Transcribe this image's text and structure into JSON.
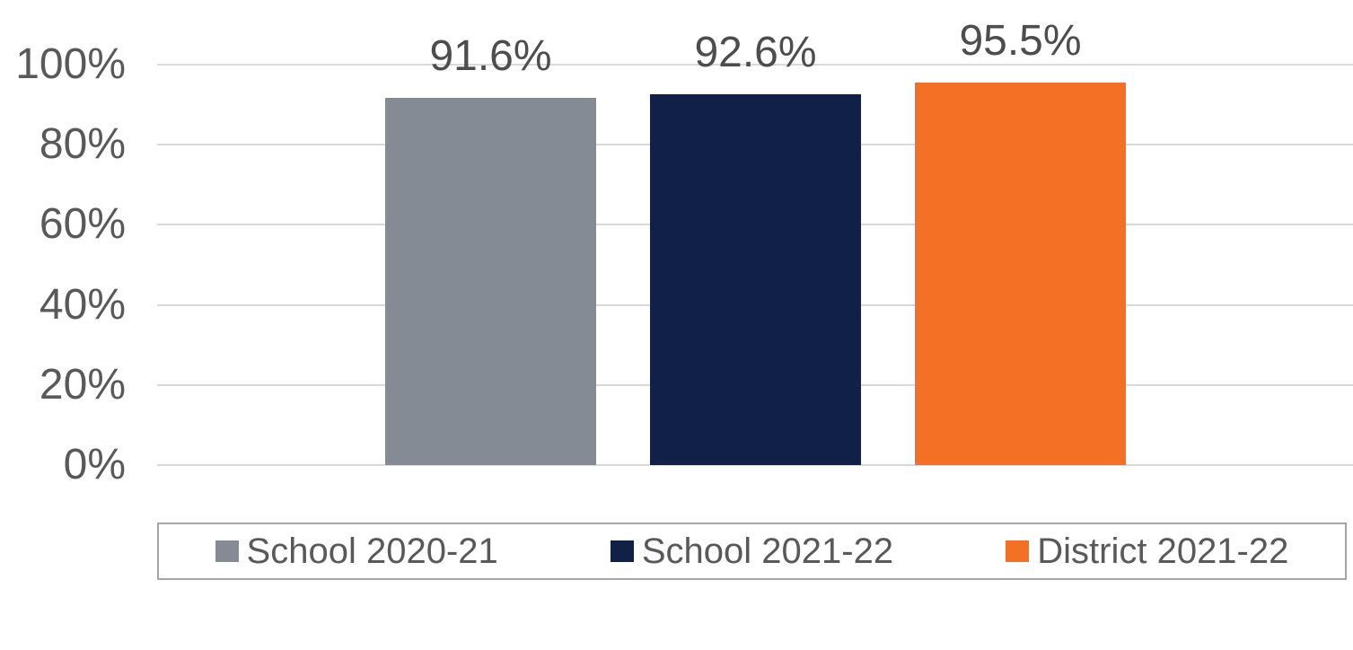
{
  "chart_data": {
    "type": "bar",
    "title": "",
    "xlabel": "",
    "ylabel": "",
    "categories": [
      "School 2020-21",
      "School 2021-22",
      "District 2021-22"
    ],
    "series": [
      {
        "name": "School 2020-21",
        "value": 91.6,
        "label": "91.6%",
        "color": "#848B95"
      },
      {
        "name": "School 2021-22",
        "value": 92.6,
        "label": "92.6%",
        "color": "#112046"
      },
      {
        "name": "District 2021-22",
        "value": 95.5,
        "label": "95.5%",
        "color": "#F37024"
      }
    ],
    "y_axis": {
      "min": 0,
      "max": 100,
      "ticks": [
        {
          "value": 0,
          "label": "0%"
        },
        {
          "value": 20,
          "label": "20%"
        },
        {
          "value": 40,
          "label": "40%"
        },
        {
          "value": 60,
          "label": "60%"
        },
        {
          "value": 80,
          "label": "80%"
        },
        {
          "value": 100,
          "label": "100%"
        }
      ]
    },
    "grid": true,
    "legend_position": "bottom",
    "legend_entries": [
      "School 2020-21",
      "School 2021-22",
      "District 2021-22"
    ]
  },
  "colors": {
    "background": "#FFFFFF",
    "grid_line": "#D9D9D9",
    "axis_text": "#595959",
    "data_label_text": "#4D4D4D",
    "legend_text": "#595959",
    "legend_border": "#A6A6A6"
  }
}
